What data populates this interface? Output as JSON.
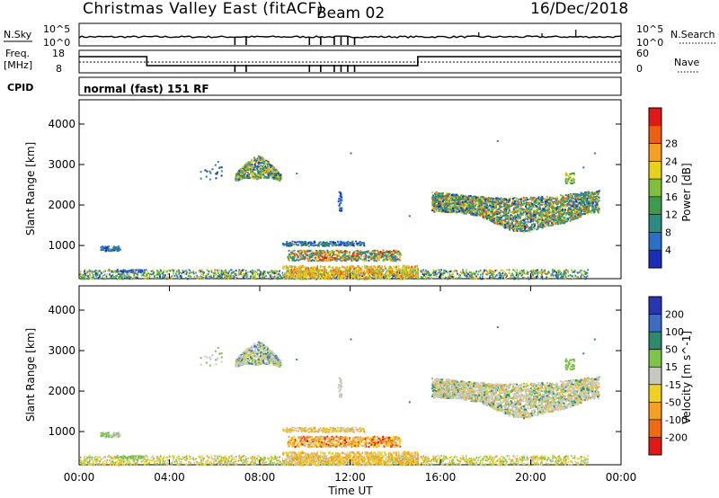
{
  "header": {
    "title": "Christmas Valley East (fitACF)",
    "beam": "Beam 02",
    "date": "16/Dec/2018"
  },
  "top_panels": {
    "nsky_label": "N.Sky",
    "nsky_tick_hi": "10^5",
    "nsky_tick_lo": "10^0",
    "nsearch_label": "N.Search",
    "nsearch_tick_hi": "10^5",
    "nsearch_tick_lo": "10^0",
    "freq_label_1": "Freq.",
    "freq_label_2": "[MHz]",
    "freq_tick_hi": "18",
    "freq_tick_lo": "8",
    "nave_label": "Nave",
    "nave_tick_hi": "60",
    "nave_tick_lo": "0",
    "cpid_label": "CPID",
    "cpid_text": "normal (fast) 151 RF"
  },
  "chart_data": [
    {
      "type": "heatmap",
      "name": "Power",
      "ylabel": "Slant Range [km]",
      "y_ticks": [
        "1000",
        "2000",
        "3000",
        "4000"
      ],
      "ylim": [
        180,
        4600
      ],
      "colorbar_label": "Power [dB]",
      "colorbar_ticks": [
        "4",
        "8",
        "12",
        "16",
        "20",
        "24",
        "28"
      ],
      "colorbar_colors": [
        "#1a2eb8",
        "#2a70c8",
        "#2f8a82",
        "#3e9a4c",
        "#7fbf3a",
        "#e6d21a",
        "#f5a020",
        "#ee6010",
        "#e01818"
      ]
    },
    {
      "type": "heatmap",
      "name": "Velocity",
      "ylabel": "Slant Range [km]",
      "y_ticks": [
        "1000",
        "2000",
        "3000",
        "4000"
      ],
      "ylim": [
        180,
        4600
      ],
      "colorbar_label": "Velocity [m s^-1]",
      "colorbar_ticks": [
        "200",
        "100",
        "50",
        "15",
        "-15",
        "-50",
        "-100",
        "-200"
      ],
      "colorbar_colors": [
        "#2836b0",
        "#3c6cc4",
        "#2e8a6a",
        "#7ec44a",
        "#c8c8c0",
        "#f0d020",
        "#f5a020",
        "#f06a10",
        "#e01818"
      ]
    }
  ],
  "x_axis": {
    "ticks": [
      "00:00",
      "04:00",
      "08:00",
      "12:00",
      "16:00",
      "20:00",
      "00:00"
    ],
    "label": "Time UT"
  }
}
